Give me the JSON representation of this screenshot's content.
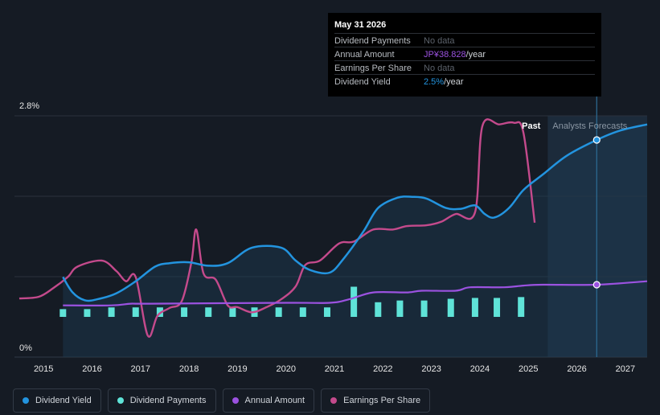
{
  "tooltip": {
    "date": "May 31 2026",
    "rows": [
      {
        "label": "Dividend Payments",
        "value": "No data",
        "unit": ""
      },
      {
        "label": "Annual Amount",
        "value": "JP¥38.828",
        "unit": "/year"
      },
      {
        "label": "Earnings Per Share",
        "value": "No data",
        "unit": ""
      },
      {
        "label": "Dividend Yield",
        "value": "2.5%",
        "unit": "/year"
      }
    ]
  },
  "legend": [
    {
      "label": "Dividend Yield",
      "color": "#2394df"
    },
    {
      "label": "Dividend Payments",
      "color": "#5fe3d8"
    },
    {
      "label": "Annual Amount",
      "color": "#9b52e0"
    },
    {
      "label": "Earnings Per Share",
      "color": "#c44a8c"
    }
  ],
  "chart_data": {
    "type": "line",
    "y_labels": [
      "2.8%",
      "0%"
    ],
    "ylim": [
      0,
      2.8
    ],
    "xlim": [
      2014.4,
      2027.45
    ],
    "x_ticks": [
      "2015",
      "2016",
      "2017",
      "2018",
      "2019",
      "2020",
      "2021",
      "2022",
      "2023",
      "2024",
      "2025",
      "2026",
      "2027"
    ],
    "x_tick_values": [
      2015,
      2016,
      2017,
      2018,
      2019,
      2020,
      2021,
      2022,
      2023,
      2024,
      2025,
      2026,
      2027
    ],
    "past_label": "Past",
    "forecast_label": "Analysts Forecasts",
    "forecast_start": 2025.4,
    "hover_x": 2026.41,
    "colors": {
      "yield": "#2394df",
      "payments": "#5fe3d8",
      "amount": "#9b52e0",
      "eps": "#c44a8c"
    },
    "series": [
      {
        "name": "Dividend Yield",
        "unit": "%",
        "points": [
          [
            2015.4,
            0.93
          ],
          [
            2015.6,
            0.75
          ],
          [
            2015.85,
            0.66
          ],
          [
            2016.1,
            0.67
          ],
          [
            2016.5,
            0.74
          ],
          [
            2016.9,
            0.88
          ],
          [
            2017.3,
            1.05
          ],
          [
            2017.6,
            1.09
          ],
          [
            2018.0,
            1.1
          ],
          [
            2018.4,
            1.06
          ],
          [
            2018.8,
            1.09
          ],
          [
            2019.3,
            1.27
          ],
          [
            2019.9,
            1.27
          ],
          [
            2020.2,
            1.12
          ],
          [
            2020.5,
            1.01
          ],
          [
            2020.9,
            0.98
          ],
          [
            2021.2,
            1.15
          ],
          [
            2021.6,
            1.46
          ],
          [
            2021.9,
            1.73
          ],
          [
            2022.3,
            1.85
          ],
          [
            2022.6,
            1.86
          ],
          [
            2022.9,
            1.84
          ],
          [
            2023.3,
            1.73
          ],
          [
            2023.6,
            1.72
          ],
          [
            2023.9,
            1.76
          ],
          [
            2024.1,
            1.66
          ],
          [
            2024.3,
            1.62
          ],
          [
            2024.6,
            1.73
          ],
          [
            2024.9,
            1.94
          ],
          [
            2025.3,
            2.12
          ],
          [
            2025.8,
            2.34
          ],
          [
            2026.41,
            2.52
          ],
          [
            2026.9,
            2.63
          ],
          [
            2027.45,
            2.7
          ]
        ]
      },
      {
        "name": "Annual Amount",
        "unit": "index",
        "points": [
          [
            2015.4,
            0.6
          ],
          [
            2016.4,
            0.6
          ],
          [
            2016.8,
            0.62
          ],
          [
            2017.2,
            0.62
          ],
          [
            2020.0,
            0.63
          ],
          [
            2020.9,
            0.63
          ],
          [
            2021.3,
            0.67
          ],
          [
            2021.8,
            0.75
          ],
          [
            2022.5,
            0.75
          ],
          [
            2022.8,
            0.77
          ],
          [
            2023.5,
            0.77
          ],
          [
            2023.8,
            0.81
          ],
          [
            2024.5,
            0.81
          ],
          [
            2024.9,
            0.83
          ],
          [
            2025.3,
            0.84
          ],
          [
            2026.41,
            0.84
          ],
          [
            2027.45,
            0.88
          ]
        ]
      },
      {
        "name": "Earnings Per Share",
        "unit": "index",
        "points": [
          [
            2014.5,
            0.68
          ],
          [
            2014.9,
            0.7
          ],
          [
            2015.2,
            0.8
          ],
          [
            2015.5,
            0.93
          ],
          [
            2015.7,
            1.05
          ],
          [
            2016.2,
            1.12
          ],
          [
            2016.5,
            1.0
          ],
          [
            2016.7,
            0.88
          ],
          [
            2016.9,
            0.93
          ],
          [
            2017.15,
            0.25
          ],
          [
            2017.35,
            0.48
          ],
          [
            2017.6,
            0.57
          ],
          [
            2017.85,
            0.65
          ],
          [
            2018.05,
            1.1
          ],
          [
            2018.15,
            1.48
          ],
          [
            2018.3,
            0.97
          ],
          [
            2018.55,
            0.9
          ],
          [
            2018.8,
            0.6
          ],
          [
            2019.0,
            0.58
          ],
          [
            2019.3,
            0.52
          ],
          [
            2019.6,
            0.58
          ],
          [
            2019.9,
            0.67
          ],
          [
            2020.2,
            0.82
          ],
          [
            2020.4,
            1.07
          ],
          [
            2020.7,
            1.12
          ],
          [
            2021.1,
            1.32
          ],
          [
            2021.4,
            1.34
          ],
          [
            2021.8,
            1.48
          ],
          [
            2022.2,
            1.48
          ],
          [
            2022.5,
            1.52
          ],
          [
            2022.9,
            1.53
          ],
          [
            2023.2,
            1.57
          ],
          [
            2023.5,
            1.66
          ],
          [
            2023.9,
            1.68
          ],
          [
            2024.05,
            2.68
          ],
          [
            2024.4,
            2.7
          ],
          [
            2024.7,
            2.72
          ],
          [
            2024.9,
            2.6
          ],
          [
            2025.13,
            1.56
          ]
        ]
      }
    ],
    "payments": {
      "name": "Dividend Payments",
      "x": [
        2015.4,
        2015.9,
        2016.4,
        2016.9,
        2017.4,
        2017.9,
        2018.4,
        2018.9,
        2019.35,
        2019.85,
        2020.35,
        2020.85,
        2021.4,
        2021.9,
        2022.35,
        2022.85,
        2023.4,
        2023.9,
        2024.35,
        2024.85
      ],
      "values": [
        0.09,
        0.09,
        0.11,
        0.11,
        0.11,
        0.11,
        0.11,
        0.11,
        0.11,
        0.11,
        0.11,
        0.11,
        0.35,
        0.17,
        0.19,
        0.19,
        0.21,
        0.22,
        0.22,
        0.23
      ]
    }
  }
}
